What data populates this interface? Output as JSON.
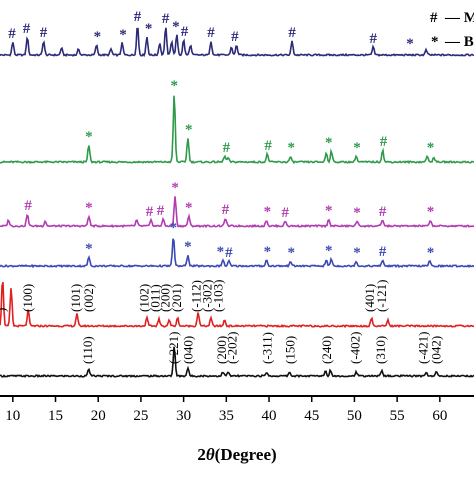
{
  "chart_data": {
    "type": "line",
    "xlabel": "2θ(Degree)",
    "xlabel_parts": {
      "symbol": "2",
      "theta": "θ",
      "rest": "(Degree)"
    },
    "xlim": [
      8.5,
      64
    ],
    "xticks": [
      "10",
      "15",
      "20",
      "25",
      "30",
      "35",
      "40",
      "45",
      "50",
      "55",
      "60"
    ],
    "grid": false,
    "legend": {
      "placement": "top-right",
      "entries": [
        {
          "symbol": "#",
          "label": "— Mn"
        },
        {
          "symbol": "*",
          "label": "— BiV"
        }
      ]
    },
    "series": [
      {
        "color": "#2b2b7a",
        "peaks": [
          {
            "x": 10.0,
            "h": 13
          },
          {
            "x": 11.7,
            "h": 18
          },
          {
            "x": 13.6,
            "h": 14
          },
          {
            "x": 15.7,
            "h": 7
          },
          {
            "x": 17.7,
            "h": 6
          },
          {
            "x": 19.8,
            "h": 10
          },
          {
            "x": 21.5,
            "h": 6
          },
          {
            "x": 22.8,
            "h": 12
          },
          {
            "x": 24.6,
            "h": 30
          },
          {
            "x": 25.7,
            "h": 18
          },
          {
            "x": 27.2,
            "h": 12
          },
          {
            "x": 27.9,
            "h": 28
          },
          {
            "x": 28.6,
            "h": 14
          },
          {
            "x": 29.2,
            "h": 20
          },
          {
            "x": 30.0,
            "h": 15
          },
          {
            "x": 30.8,
            "h": 10
          },
          {
            "x": 33.2,
            "h": 14
          },
          {
            "x": 35.6,
            "h": 8
          },
          {
            "x": 36.2,
            "h": 10
          },
          {
            "x": 42.7,
            "h": 14
          },
          {
            "x": 52.2,
            "h": 8
          },
          {
            "x": 58.4,
            "h": 5
          }
        ],
        "markers": [
          {
            "x": 9.9,
            "sym": "#",
            "h": 13
          },
          {
            "x": 11.6,
            "sym": "#",
            "h": 18
          },
          {
            "x": 13.6,
            "sym": "#",
            "h": 14
          },
          {
            "x": 19.9,
            "sym": "*",
            "h": 10
          },
          {
            "x": 22.9,
            "sym": "*",
            "h": 12
          },
          {
            "x": 24.6,
            "sym": "#",
            "h": 30
          },
          {
            "x": 25.9,
            "sym": "*",
            "h": 18
          },
          {
            "x": 27.9,
            "sym": "#",
            "h": 28
          },
          {
            "x": 29.1,
            "sym": "*",
            "h": 20
          },
          {
            "x": 30.1,
            "sym": "#",
            "h": 15
          },
          {
            "x": 33.2,
            "sym": "#",
            "h": 14
          },
          {
            "x": 36.0,
            "sym": "#",
            "h": 10
          },
          {
            "x": 42.7,
            "sym": "#",
            "h": 14
          },
          {
            "x": 52.2,
            "sym": "#",
            "h": 8
          },
          {
            "x": 56.5,
            "sym": "*",
            "h": 3
          }
        ]
      },
      {
        "color": "#2e9a4a",
        "peaks": [
          {
            "x": 18.9,
            "h": 17
          },
          {
            "x": 28.9,
            "h": 68
          },
          {
            "x": 30.5,
            "h": 24
          },
          {
            "x": 34.8,
            "h": 6
          },
          {
            "x": 35.2,
            "h": 4
          },
          {
            "x": 39.8,
            "h": 8
          },
          {
            "x": 42.5,
            "h": 5
          },
          {
            "x": 46.7,
            "h": 9
          },
          {
            "x": 47.3,
            "h": 11
          },
          {
            "x": 50.2,
            "h": 6
          },
          {
            "x": 53.3,
            "h": 12
          },
          {
            "x": 58.5,
            "h": 6
          },
          {
            "x": 59.3,
            "h": 5
          }
        ],
        "markers": [
          {
            "x": 18.9,
            "sym": "*",
            "h": 17
          },
          {
            "x": 28.9,
            "sym": "*",
            "h": 68
          },
          {
            "x": 30.6,
            "sym": "*",
            "h": 24
          },
          {
            "x": 35.0,
            "sym": "#",
            "h": 6
          },
          {
            "x": 39.9,
            "sym": "#",
            "h": 8
          },
          {
            "x": 42.6,
            "sym": "*",
            "h": 6
          },
          {
            "x": 47.0,
            "sym": "*",
            "h": 11
          },
          {
            "x": 50.3,
            "sym": "*",
            "h": 6
          },
          {
            "x": 53.4,
            "sym": "#",
            "h": 12
          },
          {
            "x": 58.9,
            "sym": "*",
            "h": 6
          }
        ]
      },
      {
        "color": "#b03cb0",
        "peaks": [
          {
            "x": 9.5,
            "h": 6
          },
          {
            "x": 11.7,
            "h": 12
          },
          {
            "x": 13.8,
            "h": 5
          },
          {
            "x": 18.9,
            "h": 10
          },
          {
            "x": 24.5,
            "h": 6
          },
          {
            "x": 26.2,
            "h": 6
          },
          {
            "x": 27.6,
            "h": 7
          },
          {
            "x": 29.0,
            "h": 30
          },
          {
            "x": 30.6,
            "h": 10
          },
          {
            "x": 34.9,
            "h": 8
          },
          {
            "x": 39.7,
            "h": 6
          },
          {
            "x": 41.9,
            "h": 5
          },
          {
            "x": 47.0,
            "h": 7
          },
          {
            "x": 50.3,
            "h": 5
          },
          {
            "x": 53.3,
            "h": 6
          },
          {
            "x": 58.9,
            "h": 6
          }
        ],
        "markers": [
          {
            "x": 11.8,
            "sym": "#",
            "h": 12
          },
          {
            "x": 18.9,
            "sym": "*",
            "h": 10
          },
          {
            "x": 26.0,
            "sym": "#",
            "h": 6
          },
          {
            "x": 27.3,
            "sym": "#",
            "h": 7
          },
          {
            "x": 29.0,
            "sym": "*",
            "h": 30
          },
          {
            "x": 30.6,
            "sym": "*",
            "h": 10
          },
          {
            "x": 34.9,
            "sym": "#",
            "h": 8
          },
          {
            "x": 39.8,
            "sym": "*",
            "h": 6
          },
          {
            "x": 41.9,
            "sym": "#",
            "h": 5
          },
          {
            "x": 47.0,
            "sym": "*",
            "h": 7
          },
          {
            "x": 50.3,
            "sym": "*",
            "h": 5
          },
          {
            "x": 53.3,
            "sym": "#",
            "h": 6
          },
          {
            "x": 58.9,
            "sym": "*",
            "h": 6
          }
        ]
      },
      {
        "color": "#3a49b5",
        "peaks": [
          {
            "x": 18.9,
            "h": 9
          },
          {
            "x": 28.8,
            "h": 30
          },
          {
            "x": 30.5,
            "h": 11
          },
          {
            "x": 34.6,
            "h": 6
          },
          {
            "x": 35.3,
            "h": 5
          },
          {
            "x": 39.7,
            "h": 6
          },
          {
            "x": 42.5,
            "h": 5
          },
          {
            "x": 46.7,
            "h": 6
          },
          {
            "x": 47.3,
            "h": 7
          },
          {
            "x": 50.2,
            "h": 5
          },
          {
            "x": 53.3,
            "h": 6
          },
          {
            "x": 58.8,
            "h": 5
          }
        ],
        "markers": [
          {
            "x": 18.9,
            "sym": "*",
            "h": 9
          },
          {
            "x": 28.8,
            "sym": "*",
            "h": 30
          },
          {
            "x": 30.5,
            "sym": "*",
            "h": 11
          },
          {
            "x": 34.3,
            "sym": "*",
            "h": 6
          },
          {
            "x": 35.3,
            "sym": "#",
            "h": 5
          },
          {
            "x": 39.8,
            "sym": "*",
            "h": 6
          },
          {
            "x": 42.6,
            "sym": "*",
            "h": 5
          },
          {
            "x": 47.0,
            "sym": "*",
            "h": 7
          },
          {
            "x": 50.3,
            "sym": "*",
            "h": 5
          },
          {
            "x": 53.3,
            "sym": "#",
            "h": 6
          },
          {
            "x": 58.9,
            "sym": "*",
            "h": 5
          }
        ]
      },
      {
        "color": "#e02020",
        "peaks": [
          {
            "x": 8.8,
            "h": 48
          },
          {
            "x": 9.8,
            "h": 38
          },
          {
            "x": 11.8,
            "h": 16
          },
          {
            "x": 17.5,
            "h": 12
          },
          {
            "x": 25.7,
            "h": 8
          },
          {
            "x": 27.1,
            "h": 7
          },
          {
            "x": 28.3,
            "h": 6
          },
          {
            "x": 29.3,
            "h": 8
          },
          {
            "x": 31.7,
            "h": 14
          },
          {
            "x": 33.2,
            "h": 8
          },
          {
            "x": 34.8,
            "h": 6
          },
          {
            "x": 52.0,
            "h": 8
          },
          {
            "x": 53.9,
            "h": 6
          }
        ],
        "markers": []
      },
      {
        "color": "#111111",
        "peaks": [
          {
            "x": 18.9,
            "h": 7
          },
          {
            "x": 28.9,
            "h": 30
          },
          {
            "x": 30.5,
            "h": 8
          },
          {
            "x": 34.6,
            "h": 4
          },
          {
            "x": 35.2,
            "h": 4
          },
          {
            "x": 39.7,
            "h": 4
          },
          {
            "x": 42.4,
            "h": 4
          },
          {
            "x": 46.6,
            "h": 5
          },
          {
            "x": 47.2,
            "h": 6
          },
          {
            "x": 50.2,
            "h": 4
          },
          {
            "x": 53.2,
            "h": 6
          },
          {
            "x": 58.4,
            "h": 4
          },
          {
            "x": 59.6,
            "h": 4
          }
        ],
        "markers": []
      }
    ],
    "peak_labels": {
      "red": [
        {
          "x": 8.7,
          "text": ")"
        },
        {
          "x": 11.8,
          "text": "(100)"
        },
        {
          "x": 17.4,
          "text": "(101)"
        },
        {
          "x": 18.9,
          "text": "(002)"
        },
        {
          "x": 25.4,
          "text": "(102)"
        },
        {
          "x": 26.7,
          "text": "(011)"
        },
        {
          "x": 27.9,
          "text": "(200)"
        },
        {
          "x": 29.2,
          "text": "(201)"
        },
        {
          "x": 31.5,
          "text": "(-112)"
        },
        {
          "x": 32.8,
          "text": "(-302)"
        },
        {
          "x": 34.1,
          "text": "(-103)"
        },
        {
          "x": 51.8,
          "text": "(401)"
        },
        {
          "x": 53.2,
          "text": "(-121)"
        }
      ],
      "black": [
        {
          "x": 18.8,
          "text": "(110)"
        },
        {
          "x": 28.9,
          "text": "(-221)"
        },
        {
          "x": 30.6,
          "text": "(040)"
        },
        {
          "x": 34.5,
          "text": "(200)"
        },
        {
          "x": 35.7,
          "text": "(-202)"
        },
        {
          "x": 39.8,
          "text": "(-311)"
        },
        {
          "x": 42.5,
          "text": "(150)"
        },
        {
          "x": 46.8,
          "text": "(240)"
        },
        {
          "x": 50.1,
          "text": "(-402)"
        },
        {
          "x": 53.1,
          "text": "(310)"
        },
        {
          "x": 58.1,
          "text": "(-421)"
        },
        {
          "x": 59.6,
          "text": "(042)"
        }
      ]
    }
  }
}
